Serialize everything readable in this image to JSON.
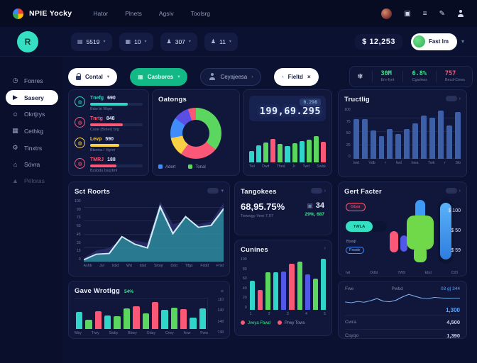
{
  "colors": {
    "teal": "#2fd5c8",
    "green": "#5bd75f",
    "red": "#fa5876",
    "yellow": "#f9cf45",
    "blue": "#3f8cfa",
    "indigo": "#5158e8",
    "steel": "#3d5fa8",
    "purple": "#5b4ee5"
  },
  "icons": {
    "menu": "≡",
    "pen": "✎",
    "brackets": "▣",
    "chevron": "▾",
    "chevron_l": "‹",
    "chevron_r": "›",
    "close": "×",
    "clock": "◷",
    "dart": "▶",
    "user": "☺",
    "calendar": "▦",
    "gear": "⚙",
    "home": "⌂",
    "pin": "▲",
    "bag": "▤",
    "cart": "▦",
    "pawn": "♟",
    "grid": "▦",
    "snow": "❄",
    "device": "▣",
    "m1": "◍",
    "m2": "⊕",
    "m3": "◔",
    "m4": "◍"
  },
  "topbar": {
    "title": "NPIE Yocky",
    "nav": [
      "Hator",
      "Plnets",
      "Agsiv",
      "Toolsrg"
    ]
  },
  "toolbar": {
    "chips": [
      {
        "value": "5519"
      },
      {
        "value": "10"
      },
      {
        "value": "307"
      },
      {
        "value": "11"
      }
    ],
    "balance": "$ 12,253",
    "profile": "Fast lm",
    "avatar_initials": "R"
  },
  "sidebar": {
    "items": [
      {
        "label": "Fonres"
      },
      {
        "label": "Sasery"
      },
      {
        "label": "Okrtjrys"
      },
      {
        "label": "Cethkg"
      },
      {
        "label": "Tinxtrs"
      },
      {
        "label": "Sóvra"
      },
      {
        "label": "Péloras"
      }
    ]
  },
  "filters": {
    "control": "Contal",
    "dashboard": "Casbores",
    "people": "Ceyajeesa",
    "field": "Fieltd",
    "stats": [
      {
        "value": "30M",
        "label": "Em-fynt",
        "tone": "green"
      },
      {
        "value": "6.8%",
        "label": "Cgarkws",
        "tone": "green"
      },
      {
        "value": "757",
        "label": "Becd-Cews",
        "tone": "red"
      }
    ]
  },
  "metrics": {
    "items": [
      {
        "label": "Tnefg",
        "value": "690",
        "sub": "Bdw bt Wqer",
        "color": "teal",
        "pct": 72
      },
      {
        "label": "Tnrtg",
        "value": "848",
        "sub": "Cuse (Boter) brg",
        "color": "red",
        "pct": 62
      },
      {
        "label": "Levp",
        "value": "590",
        "sub": "Btzena / Hgrer",
        "color": "yellow",
        "pct": 55
      },
      {
        "label": "TMRJ",
        "value": "188",
        "sub": "Bzsbdu bsqrtrnl",
        "color": "red",
        "pct": 50
      }
    ]
  },
  "oatongs": {
    "title": "Oatongs",
    "legend": [
      {
        "label": "Adert",
        "color": "blue"
      },
      {
        "label": "Tonal",
        "color": "green"
      }
    ],
    "chart_data": {
      "type": "pie",
      "segments": [
        {
          "color": "green",
          "pct": 36
        },
        {
          "color": "red",
          "pct": 24
        },
        {
          "color": "yellow",
          "pct": 12
        },
        {
          "color": "blue",
          "pct": 13
        },
        {
          "color": "purple",
          "pct": 10
        },
        {
          "color": "red",
          "pct": 5
        }
      ]
    }
  },
  "numbers": {
    "badge": "0.298",
    "value": "199,69.295",
    "chart_data": {
      "type": "bar",
      "values": [
        30,
        46,
        54,
        64,
        50,
        44,
        52,
        58,
        62,
        72,
        56
      ],
      "colors": [
        "teal",
        "teal",
        "green",
        "red",
        "green",
        "teal",
        "green",
        "teal",
        "green",
        "green",
        "red"
      ],
      "xlabels": [
        "Twl",
        "Dwd",
        "Thed",
        "Jr",
        "Twd",
        "Swbk"
      ]
    }
  },
  "tructlig": {
    "title": "Tructlig",
    "chart_data": {
      "type": "bar",
      "color": "steel",
      "values": [
        78,
        78,
        55,
        45,
        58,
        48,
        58,
        70,
        85,
        80,
        95,
        65,
        92
      ],
      "yticks": [
        "100",
        "75",
        "50",
        "25",
        "0"
      ],
      "xlabels": [
        "Iwd",
        "Vdb",
        "r",
        "Iwd",
        "Ioea",
        "Twk",
        "r",
        "Sib"
      ],
      "ylim": [
        0,
        100
      ]
    }
  },
  "sct": {
    "title": "Sct Roorts",
    "chart_data": {
      "type": "area",
      "yticks": [
        "100",
        "90",
        "75",
        "60",
        "45",
        "30",
        "15",
        "0"
      ],
      "xlabels": [
        "Ashb",
        "Jul",
        "Ixbd",
        "Wd",
        "Idsd",
        "Srbqr",
        "Ddd",
        "Tifgs",
        "Fddd",
        "Fhid"
      ],
      "ylim": [
        0,
        100
      ],
      "series": [
        {
          "name": "base",
          "values": [
            6,
            18,
            22,
            36,
            34,
            30,
            96,
            60,
            66,
            60,
            64,
            95
          ],
          "fill": "rgba(64,72,150,0.45)",
          "stroke": ""
        },
        {
          "name": "main",
          "values": [
            3,
            12,
            13,
            40,
            28,
            22,
            88,
            45,
            72,
            55,
            58,
            85
          ],
          "fill": "rgba(45,200,190,0.5)",
          "stroke": "#cfe9f5"
        }
      ]
    }
  },
  "tango": {
    "title": "Tangokees",
    "value": "68,95.75%",
    "sub": "Tewwgy Vew 7.07",
    "count": "34",
    "delta": "29%, 687"
  },
  "gert": {
    "title": "Gert Facter",
    "tag": "Gbwr",
    "pill": "TWLA",
    "label2": "Bswjl",
    "pill2": "Pxwde",
    "prices": [
      "$ 100",
      "$ 50",
      "$ 59"
    ],
    "xlabels": [
      "Iwl",
      "Odbt",
      "7W9",
      "Ebd",
      "C93"
    ]
  },
  "cunines": {
    "title": "Cunines",
    "legend": [
      {
        "label": "Jveya Fbwd"
      },
      {
        "label": "Prwy Tows"
      }
    ],
    "chart_data": {
      "type": "bar",
      "values": [
        55,
        38,
        72,
        72,
        73,
        88,
        92,
        68,
        60,
        97
      ],
      "colors": [
        "teal",
        "red",
        "green",
        "teal",
        "indigo",
        "red",
        "green",
        "indigo",
        "green",
        "teal"
      ],
      "yticks": [
        "100",
        "80",
        "60",
        "40",
        "20",
        "0"
      ],
      "xlabels": [
        "1",
        "2",
        "3",
        "4",
        "5"
      ],
      "ylim": [
        0,
        100
      ]
    }
  },
  "gave": {
    "title": "Gave Wrotlgg",
    "badge": "54%",
    "rticks": [
      "110",
      "140",
      "148",
      "748"
    ],
    "chart_data": {
      "type": "bar",
      "values": [
        55,
        30,
        58,
        45,
        42,
        68,
        75,
        52,
        88,
        62,
        70,
        66,
        38,
        68
      ],
      "colors": [
        "teal",
        "green",
        "red",
        "teal",
        "green",
        "green",
        "red",
        "green",
        "red",
        "teal",
        "green",
        "red",
        "teal",
        "teal"
      ],
      "xlabels": [
        "Mby",
        "Trwy",
        "Swby",
        "Bbwy",
        "Oday",
        "Crwy",
        "Asw",
        "Fww"
      ]
    }
  },
  "quotes": {
    "col1": "Fwe",
    "col2": "Pwbd",
    "col3": "03 g| 344",
    "spark_value": "1,300",
    "rows": [
      {
        "label": "Cwra",
        "value": "4,500"
      },
      {
        "label": "Csyqo",
        "value": "1,390"
      }
    ],
    "chart_data": {
      "type": "line",
      "values": [
        28,
        22,
        32,
        26,
        38,
        55,
        34,
        30,
        42,
        68,
        88,
        72,
        58,
        54,
        64,
        60,
        57,
        58,
        58
      ],
      "stroke": "#7fb3f5"
    }
  }
}
